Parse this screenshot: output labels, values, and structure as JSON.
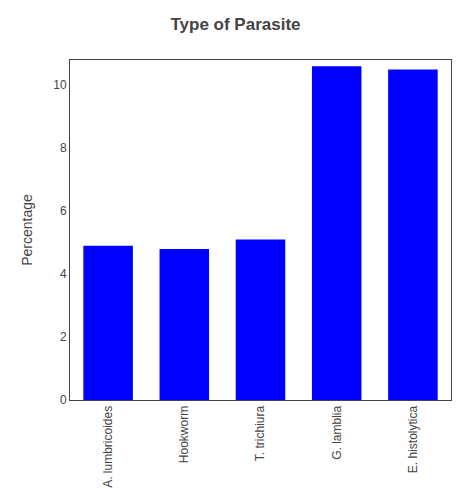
{
  "chart_data": {
    "type": "bar",
    "title": "Type of Parasite",
    "ylabel": "Percentage",
    "categories": [
      "A. lumbricoides",
      "Hookworm",
      "T. trichiura",
      "G. lamblia",
      "E. histolytica"
    ],
    "values": [
      4.9,
      4.8,
      5.1,
      10.6,
      10.5
    ],
    "color": "#0000FF",
    "ylim": [
      0,
      10.8
    ],
    "yticks": [
      0,
      2,
      4,
      6,
      8,
      10
    ],
    "grid": false
  }
}
